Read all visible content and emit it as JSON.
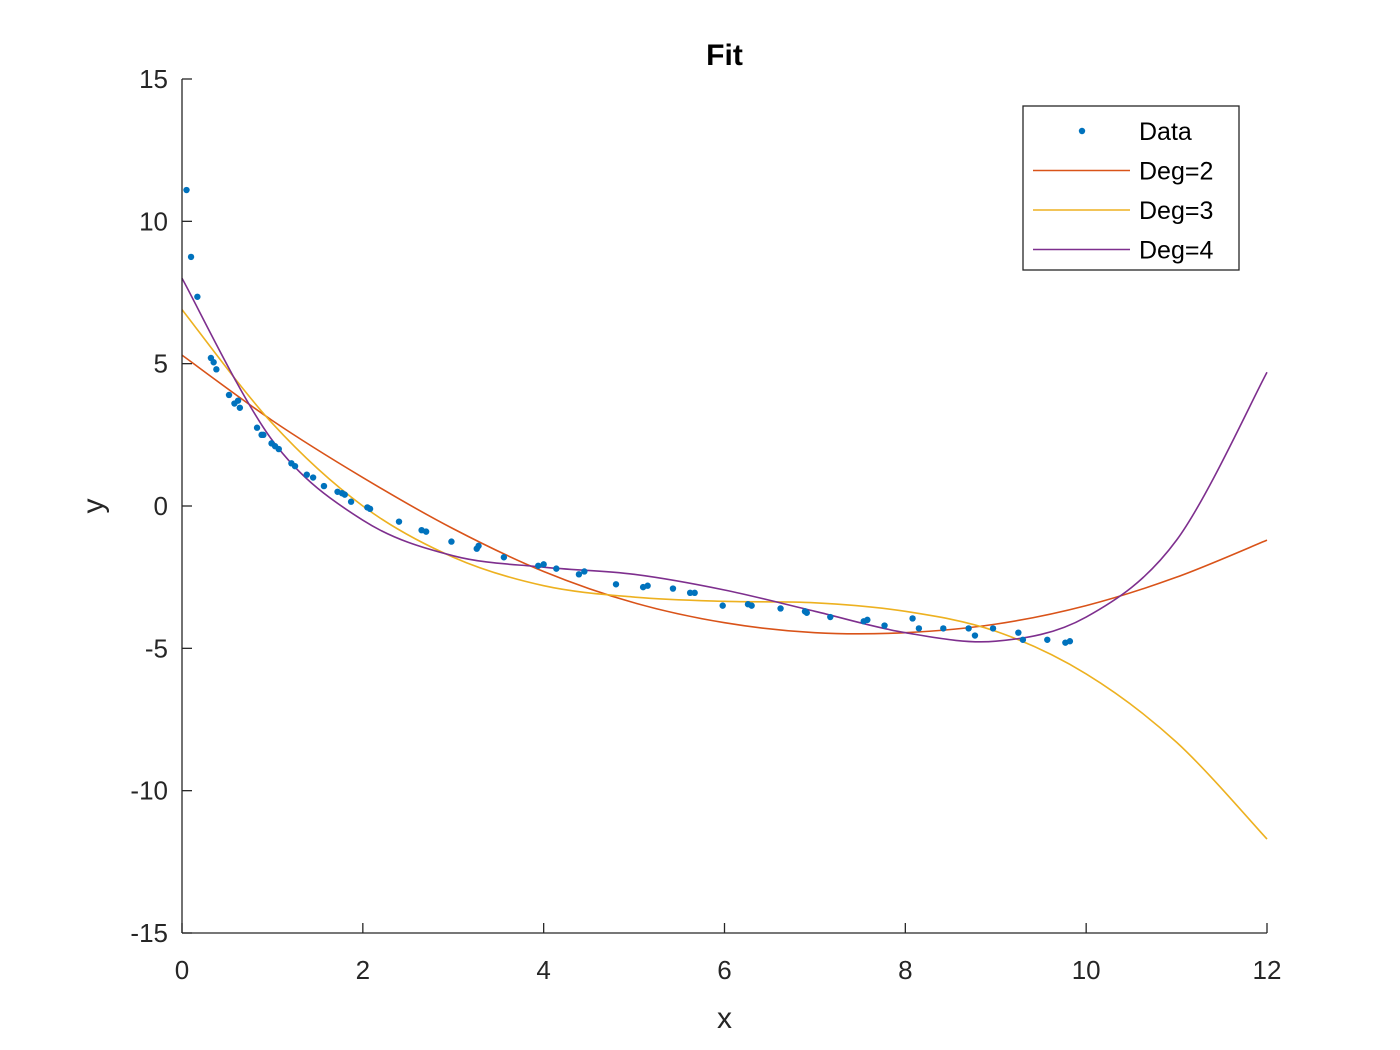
{
  "chart_data": {
    "type": "scatter",
    "title": "Fit",
    "xlabel": "x",
    "ylabel": "y",
    "xlim": [
      0,
      12
    ],
    "ylim": [
      -15,
      15
    ],
    "xticks": [
      0,
      2,
      4,
      6,
      8,
      10,
      12
    ],
    "yticks": [
      -15,
      -10,
      -5,
      0,
      5,
      10,
      15
    ],
    "grid": false,
    "legend_position": "top-right",
    "series": [
      {
        "name": "Data",
        "kind": "points",
        "color": "#0072BD",
        "x": [
          0.05,
          0.1,
          0.17,
          0.32,
          0.35,
          0.38,
          0.52,
          0.58,
          0.62,
          0.64,
          0.83,
          0.88,
          0.9,
          0.99,
          1.03,
          1.07,
          1.21,
          1.25,
          1.38,
          1.45,
          1.57,
          1.72,
          1.77,
          1.8,
          1.87,
          2.05,
          2.08,
          2.4,
          2.65,
          2.7,
          2.98,
          3.26,
          3.28,
          3.56,
          3.94,
          4.0,
          4.14,
          4.39,
          4.45,
          4.8,
          5.1,
          5.15,
          5.43,
          5.62,
          5.67,
          5.98,
          6.26,
          6.3,
          6.62,
          6.89,
          6.91,
          7.17,
          7.54,
          7.58,
          7.77,
          8.08,
          8.15,
          8.42,
          8.7,
          8.77,
          8.97,
          9.25,
          9.3,
          9.57,
          9.77,
          9.82
        ],
        "y": [
          11.1,
          8.75,
          7.35,
          5.2,
          5.05,
          4.8,
          3.9,
          3.6,
          3.7,
          3.45,
          2.75,
          2.5,
          2.5,
          2.2,
          2.1,
          2.0,
          1.5,
          1.4,
          1.1,
          1.0,
          0.7,
          0.5,
          0.45,
          0.4,
          0.15,
          -0.05,
          -0.1,
          -0.55,
          -0.85,
          -0.9,
          -1.25,
          -1.5,
          -1.4,
          -1.8,
          -2.1,
          -2.05,
          -2.2,
          -2.4,
          -2.3,
          -2.75,
          -2.85,
          -2.8,
          -2.9,
          -3.05,
          -3.05,
          -3.5,
          -3.45,
          -3.5,
          -3.6,
          -3.7,
          -3.75,
          -3.9,
          -4.05,
          -4.0,
          -4.2,
          -3.95,
          -4.3,
          -4.3,
          -4.3,
          -4.55,
          -4.3,
          -4.45,
          -4.7,
          -4.7,
          -4.8,
          -4.75
        ]
      },
      {
        "name": "Deg=2",
        "kind": "line",
        "color": "#D95319",
        "x": [
          0,
          1,
          2,
          3,
          4,
          5,
          6,
          7,
          8,
          9,
          10,
          11,
          12
        ],
        "y": [
          5.3,
          3.0,
          1.0,
          -0.8,
          -2.3,
          -3.4,
          -4.1,
          -4.45,
          -4.45,
          -4.15,
          -3.5,
          -2.5,
          -1.2
        ]
      },
      {
        "name": "Deg=3",
        "kind": "line",
        "color": "#EDB120",
        "x": [
          0,
          1,
          2,
          3,
          4,
          5,
          6,
          7,
          8,
          9,
          10,
          11,
          12
        ],
        "y": [
          6.9,
          2.9,
          0.0,
          -1.8,
          -2.8,
          -3.2,
          -3.35,
          -3.4,
          -3.7,
          -4.4,
          -5.9,
          -8.3,
          -11.7
        ]
      },
      {
        "name": "Deg=4",
        "kind": "line",
        "color": "#7E2F8E",
        "x": [
          0,
          1,
          2,
          3,
          4,
          5,
          6,
          7,
          8,
          9,
          10,
          11,
          12
        ],
        "y": [
          8.0,
          2.3,
          -0.5,
          -1.75,
          -2.15,
          -2.4,
          -2.95,
          -3.7,
          -4.45,
          -4.75,
          -3.9,
          -1.2,
          4.7
        ]
      }
    ]
  }
}
